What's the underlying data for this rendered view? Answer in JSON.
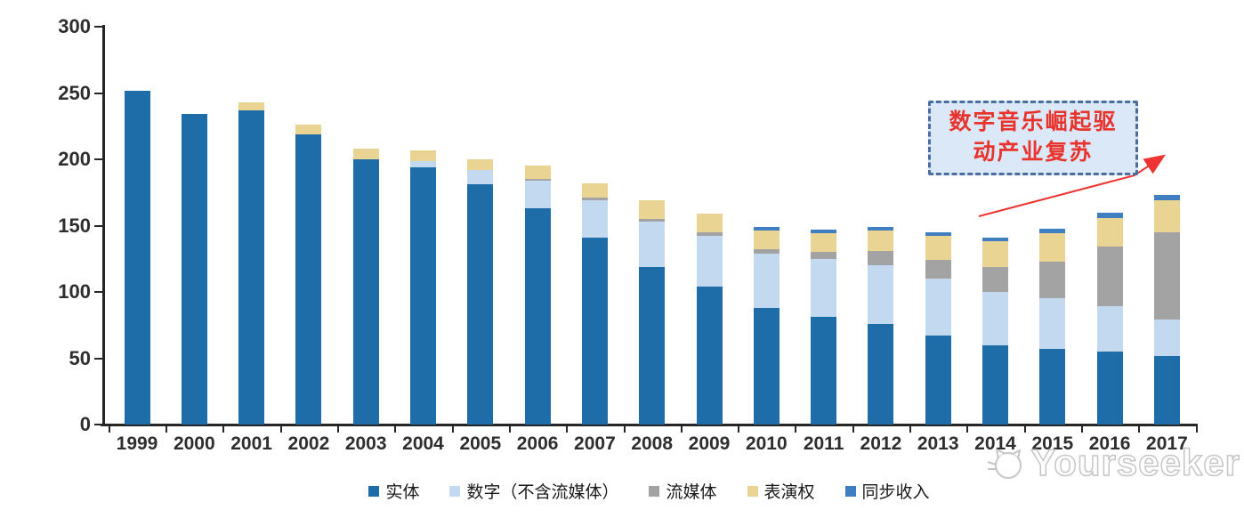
{
  "chart_data": {
    "type": "bar",
    "stacked": true,
    "title": "",
    "xlabel": "",
    "ylabel": "",
    "ylim": [
      0,
      300
    ],
    "y_ticks": [
      0,
      50,
      100,
      150,
      200,
      250,
      300
    ],
    "grid": false,
    "legend_position": "bottom",
    "categories": [
      "1999",
      "2000",
      "2001",
      "2002",
      "2003",
      "2004",
      "2005",
      "2006",
      "2007",
      "2008",
      "2009",
      "2010",
      "2011",
      "2012",
      "2013",
      "2014",
      "2015",
      "2016",
      "2017"
    ],
    "series": [
      {
        "name": "实体",
        "color": "#1e6ca8",
        "values": [
          252,
          234,
          237,
          219,
          200,
          194,
          181,
          163,
          141,
          119,
          104,
          88,
          81,
          76,
          67,
          60,
          57,
          55,
          52
        ]
      },
      {
        "name": "数字（不含流媒体）",
        "color": "#c3d9ef",
        "values": [
          0,
          0,
          0,
          0,
          0,
          5,
          11,
          21,
          28,
          34,
          38,
          41,
          44,
          44,
          43,
          40,
          38,
          34,
          27
        ]
      },
      {
        "name": "流媒体",
        "color": "#a3a3a3",
        "values": [
          0,
          0,
          0,
          0,
          0,
          0,
          0,
          1,
          2,
          2,
          3,
          3,
          5,
          11,
          14,
          19,
          28,
          45,
          66
        ]
      },
      {
        "name": "表演权",
        "color": "#e9d494",
        "values": [
          0,
          0,
          6,
          7,
          8,
          8,
          8,
          10,
          11,
          14,
          14,
          14,
          14,
          15,
          18,
          19,
          21,
          22,
          24
        ]
      },
      {
        "name": "同步收入",
        "color": "#3f7ec0",
        "values": [
          0,
          0,
          0,
          0,
          0,
          0,
          0,
          0,
          0,
          0,
          0,
          3,
          3,
          3,
          3,
          3,
          4,
          4,
          4
        ]
      }
    ],
    "totals": [
      252,
      234,
      243,
      226,
      208,
      207,
      200,
      195,
      182,
      169,
      159,
      149,
      147,
      149,
      145,
      141,
      148,
      160,
      173
    ]
  },
  "annotation": {
    "line1": "数字音乐崛起驱",
    "line2": "动产业复苏",
    "text_color": "#e8342c",
    "box_fill": "#dbe8f7",
    "box_border": "#4a6f9f",
    "arrow_color": "#ee3333"
  },
  "watermark": {
    "text": "Yourseeker"
  },
  "axis": {
    "color": "#262626",
    "label_color": "#2e2e2e"
  }
}
